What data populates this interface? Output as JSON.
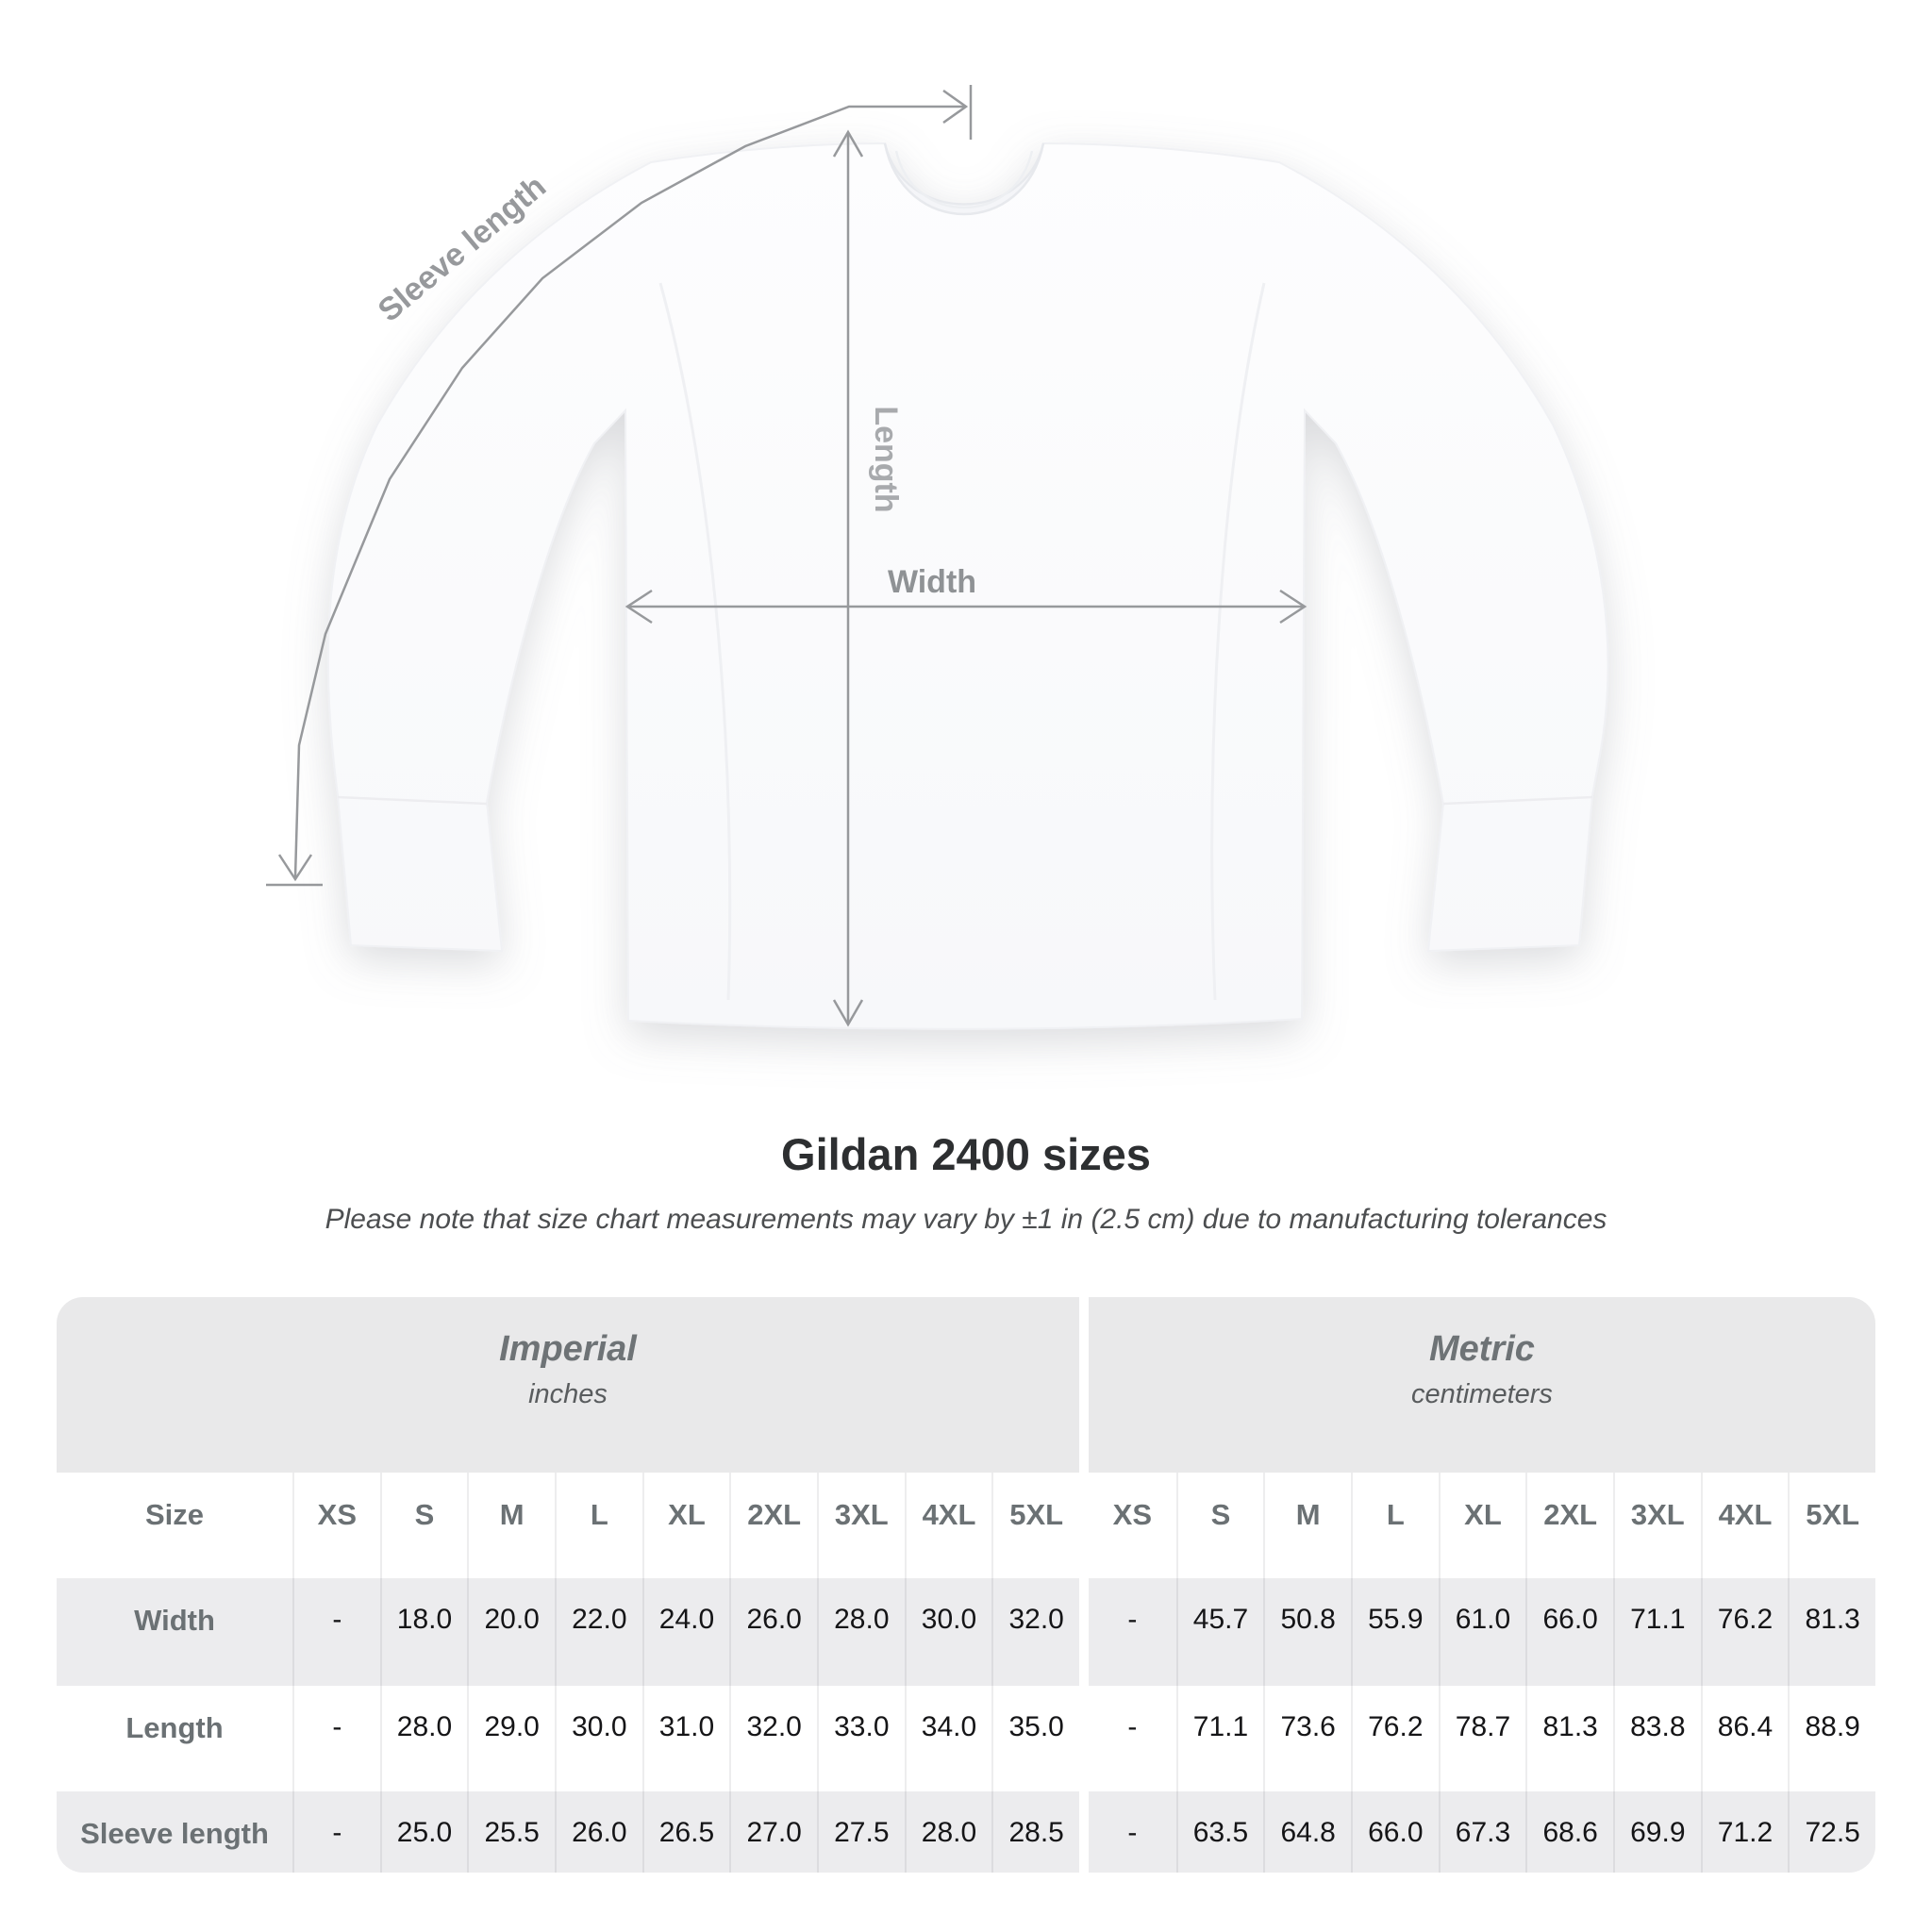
{
  "diagram": {
    "sleeve_length_label": "Sleeve length",
    "length_label": "Length",
    "width_label": "Width"
  },
  "heading": {
    "title": "Gildan 2400 sizes",
    "subtitle": "Please note that size chart measurements may vary by ±1 in (2.5 cm) due to manufacturing tolerances"
  },
  "table": {
    "size_column_header": "Size",
    "groups": [
      {
        "label": "Imperial",
        "unit": "inches"
      },
      {
        "label": "Metric",
        "unit": "centimeters"
      }
    ],
    "sizes": [
      "XS",
      "S",
      "M",
      "L",
      "XL",
      "2XL",
      "3XL",
      "4XL",
      "5XL"
    ],
    "rows": [
      {
        "label": "Width",
        "imperial": [
          "-",
          "18.0",
          "20.0",
          "22.0",
          "24.0",
          "26.0",
          "28.0",
          "30.0",
          "32.0"
        ],
        "metric": [
          "-",
          "45.7",
          "50.8",
          "55.9",
          "61.0",
          "66.0",
          "71.1",
          "76.2",
          "81.3"
        ]
      },
      {
        "label": "Length",
        "imperial": [
          "-",
          "28.0",
          "29.0",
          "30.0",
          "31.0",
          "32.0",
          "33.0",
          "34.0",
          "35.0"
        ],
        "metric": [
          "-",
          "71.1",
          "73.6",
          "76.2",
          "78.7",
          "81.3",
          "83.8",
          "86.4",
          "88.9"
        ]
      },
      {
        "label": "Sleeve length",
        "imperial": [
          "-",
          "25.0",
          "25.5",
          "26.0",
          "26.5",
          "27.0",
          "27.5",
          "28.0",
          "28.5"
        ],
        "metric": [
          "-",
          "63.5",
          "64.8",
          "66.0",
          "67.3",
          "68.6",
          "69.9",
          "71.2",
          "72.5"
        ]
      }
    ]
  },
  "colors": {
    "annotation_line": "#97999c",
    "sleeve_label": "#97999c",
    "length_label": "#a8aaad",
    "width_label": "#8f9295",
    "group_header_bg": "#e9e9ea",
    "stripe_bg": "#ececee",
    "header_text": "#6b7174",
    "value_text": "#151517"
  }
}
